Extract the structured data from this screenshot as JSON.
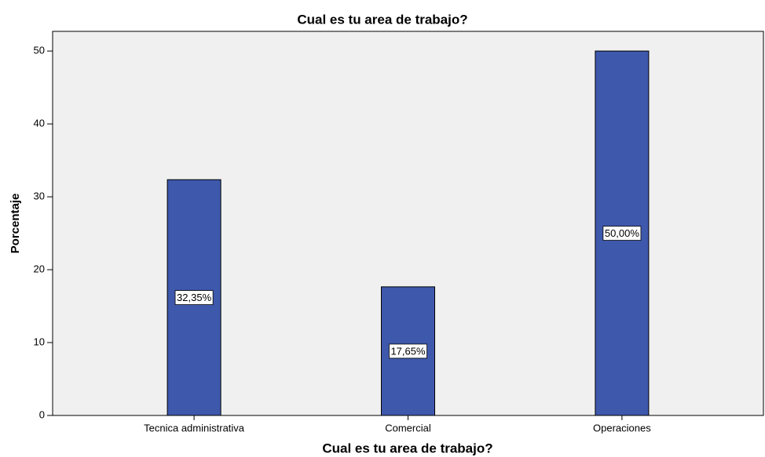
{
  "chart_data": {
    "type": "bar",
    "title": "Cual es tu area de trabajo?",
    "xlabel": "Cual es tu area de trabajo?",
    "ylabel": "Porcentaje",
    "categories": [
      "Tecnica administrativa",
      "Comercial",
      "Operaciones"
    ],
    "values": [
      32.35,
      17.65,
      50
    ],
    "value_labels": [
      "32,35%",
      "17,65%",
      "50,00%"
    ],
    "color": "#3e58ac",
    "ylim": [
      0,
      52.7
    ],
    "yticks": [
      0,
      10,
      20,
      30,
      40,
      50
    ],
    "grid": false
  }
}
